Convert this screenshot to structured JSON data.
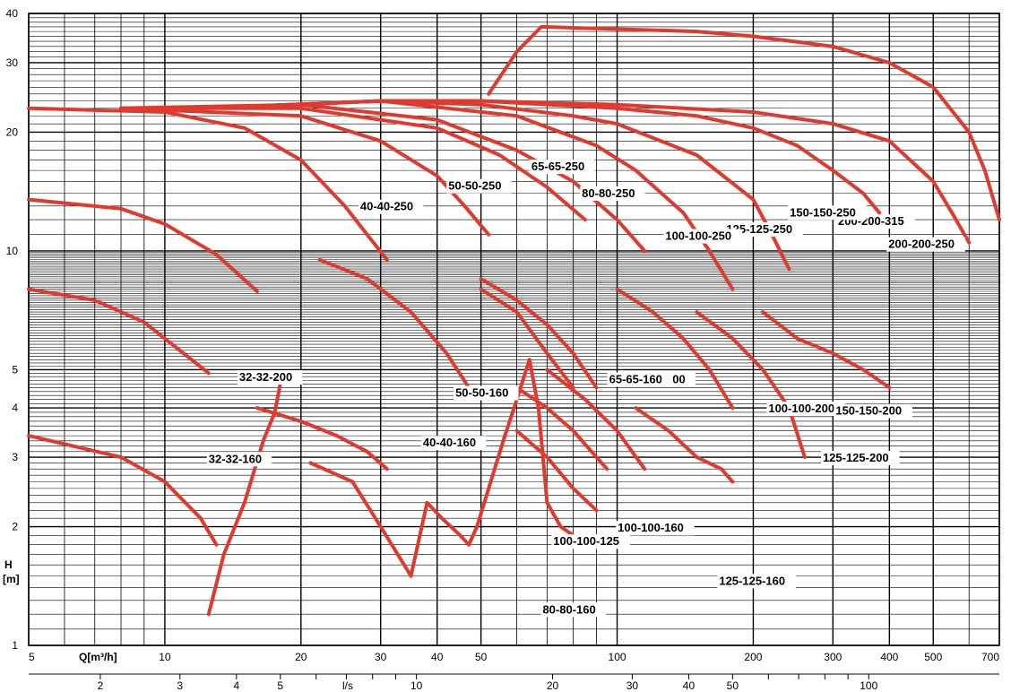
{
  "chart_data": {
    "type": "line",
    "title": "",
    "xscale": "log",
    "yscale": "log",
    "xlim": [
      5,
      700
    ],
    "ylim": [
      1,
      40
    ],
    "grid": true,
    "colors": {
      "curve": "#e03a2f",
      "grid": "#000000",
      "background": "#ffffff"
    },
    "xlabel": "Q[m³/h]",
    "x2label": "l/s",
    "ylabel_line1": "H",
    "ylabel_line2": "[m]",
    "x_ticks": [
      5,
      10,
      20,
      30,
      40,
      50,
      100,
      200,
      300,
      400,
      500,
      700
    ],
    "x2_ticks": [
      2,
      3,
      4,
      5,
      10,
      20,
      30,
      40,
      50,
      100
    ],
    "y_ticks": [
      1,
      2,
      3,
      4,
      5,
      10,
      20,
      30,
      40
    ],
    "series": [
      {
        "label": "200-200-315",
        "x": [
          52,
          60,
          68,
          100,
          150,
          200,
          300,
          400,
          500,
          600,
          650,
          700
        ],
        "y": [
          25,
          32,
          37,
          36.5,
          36,
          35,
          33,
          30,
          26,
          20,
          16,
          12
        ]
      },
      {
        "label": "200-200-250",
        "x": [
          12,
          30,
          50,
          100,
          200,
          300,
          400,
          500,
          550,
          600
        ],
        "y": [
          23,
          24,
          24,
          23.5,
          22.5,
          21,
          19,
          15,
          12.5,
          10.5
        ]
      },
      {
        "label": "150-150-250",
        "x": [
          12,
          30,
          50,
          100,
          150,
          200,
          250,
          300,
          350,
          380
        ],
        "y": [
          23,
          24,
          24,
          23,
          22,
          20.5,
          18.5,
          16,
          14,
          12.5
        ]
      },
      {
        "label": "125-125-250",
        "x": [
          12,
          30,
          50,
          80,
          100,
          150,
          200,
          220,
          240
        ],
        "y": [
          23,
          24,
          23.5,
          22,
          21,
          17.5,
          13.5,
          11,
          9
        ]
      },
      {
        "label": "100-100-250",
        "x": [
          12,
          30,
          60,
          90,
          110,
          140,
          160,
          180
        ],
        "y": [
          23,
          24,
          22,
          18.5,
          16,
          12.5,
          10,
          8
        ]
      },
      {
        "label": "80-80-250",
        "x": [
          8,
          20,
          40,
          60,
          80,
          100,
          115
        ],
        "y": [
          23,
          23.5,
          21.5,
          18,
          15,
          12,
          10
        ]
      },
      {
        "label": "65-65-250",
        "x": [
          8,
          20,
          40,
          55,
          70,
          85
        ],
        "y": [
          23,
          23,
          20.5,
          17.5,
          14.5,
          12
        ]
      },
      {
        "label": "50-50-250",
        "x": [
          8,
          20,
          30,
          40,
          46,
          52
        ],
        "y": [
          23,
          22,
          19,
          15.5,
          13,
          11
        ]
      },
      {
        "label": "40-40-250",
        "x": [
          5,
          10,
          15,
          20,
          25,
          28,
          31
        ],
        "y": [
          23,
          22.5,
          20.5,
          17,
          13,
          11,
          9.5
        ]
      },
      {
        "label": "50-50-160",
        "x": [
          22,
          28,
          35,
          42,
          47
        ],
        "y": [
          9.5,
          8.5,
          7,
          5.5,
          4.5
        ]
      },
      {
        "label": "80-80-200",
        "x": [
          50,
          60,
          70,
          80,
          90
        ],
        "y": [
          8.5,
          7.5,
          6.5,
          5.5,
          4.5
        ]
      },
      {
        "label": "65-65-160",
        "x": [
          50,
          60,
          70,
          80
        ],
        "y": [
          8,
          7,
          5.5,
          4.5
        ]
      },
      {
        "label": "100-100-200",
        "x": [
          100,
          120,
          140,
          160,
          180
        ],
        "y": [
          8,
          7,
          6,
          5,
          4
        ]
      },
      {
        "label": "125-125-200",
        "x": [
          150,
          180,
          210,
          240,
          260
        ],
        "y": [
          7,
          6,
          5,
          4,
          3
        ]
      },
      {
        "label": "150-150-200",
        "x": [
          210,
          250,
          300,
          350,
          400
        ],
        "y": [
          7,
          6,
          5.5,
          5,
          4.5
        ]
      },
      {
        "label": "32-32-200",
        "x": [
          5,
          8,
          10,
          13,
          16
        ],
        "y": [
          13.5,
          12.8,
          11.7,
          9.8,
          7.9
        ]
      },
      {
        "label": "40-40-160",
        "x": [
          16,
          20,
          24,
          28,
          31
        ],
        "y": [
          4,
          3.7,
          3.4,
          3.1,
          2.8
        ]
      },
      {
        "label": "32-32-160",
        "x": [
          5,
          7,
          9,
          11,
          12.5
        ],
        "y": [
          8,
          7.5,
          6.6,
          5.5,
          4.9
        ]
      },
      {
        "label": "100-100-160",
        "x": [
          70,
          85,
          100,
          115
        ],
        "y": [
          5,
          4.2,
          3.5,
          2.8
        ]
      },
      {
        "label": "125-125-160",
        "x": [
          110,
          130,
          150,
          170,
          180
        ],
        "y": [
          4,
          3.5,
          3,
          2.8,
          2.6
        ]
      },
      {
        "label": "100-100-125",
        "x": [
          60,
          70,
          80,
          90,
          95
        ],
        "y": [
          4.5,
          4,
          3.5,
          3,
          2.8
        ]
      },
      {
        "label": "80-80-160",
        "x": [
          60,
          70,
          80,
          90
        ],
        "y": [
          3.5,
          3,
          2.5,
          2.2
        ]
      }
    ],
    "extra_lines": [
      {
        "x": [
          5,
          8,
          10,
          12,
          13
        ],
        "y": [
          3.4,
          3.0,
          2.6,
          2.1,
          1.8
        ]
      },
      {
        "x": [
          12.5,
          13.5,
          15,
          16.5,
          17.5,
          18
        ],
        "y": [
          1.2,
          1.7,
          2.3,
          3.3,
          3.9,
          4.6
        ]
      },
      {
        "x": [
          21,
          26,
          30,
          35
        ],
        "y": [
          2.9,
          2.6,
          2.0,
          1.5
        ]
      },
      {
        "x": [
          35,
          38,
          41,
          45,
          47
        ],
        "y": [
          1.5,
          2.3,
          2.1,
          1.9,
          1.8
        ]
      },
      {
        "x": [
          47,
          49,
          52,
          56,
          60,
          64
        ],
        "y": [
          1.8,
          2.0,
          2.5,
          3.3,
          4.2,
          5.3
        ]
      },
      {
        "x": [
          64,
          67,
          70,
          75,
          80
        ],
        "y": [
          5.3,
          4.0,
          2.3,
          2.0,
          1.9
        ]
      }
    ]
  }
}
